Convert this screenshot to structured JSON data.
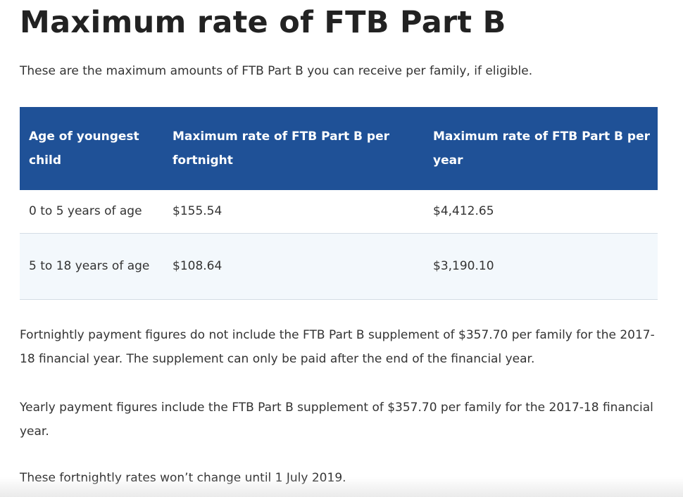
{
  "page_title": "Maximum rate of FTB Part B",
  "intro": "These are the maximum amounts of FTB Part B you can receive per family, if eligible.",
  "table": {
    "headers": [
      "Age of youngest child",
      "Maximum rate of FTB Part B per fortnight",
      "Maximum rate of FTB Part B per year"
    ],
    "rows": [
      [
        "0 to 5 years of age",
        "$155.54",
        "$4,412.65"
      ],
      [
        "5 to 18 years of age",
        "$108.64",
        "$3,190.10"
      ]
    ]
  },
  "notes": [
    "Fortnightly payment figures do not include the FTB Part B supplement of $357.70 per family for the 2017-18 financial year. The supplement can only be paid after the end of the financial year.",
    "Yearly payment figures include the FTB Part B supplement of $357.70 per family for the 2017-18 financial year.",
    "These fortnightly rates won’t change until 1 July 2019."
  ],
  "colors": {
    "header_bg": "#1f5197",
    "alt_row_bg": "#f3f8fc",
    "row_border": "#d5dde5"
  }
}
